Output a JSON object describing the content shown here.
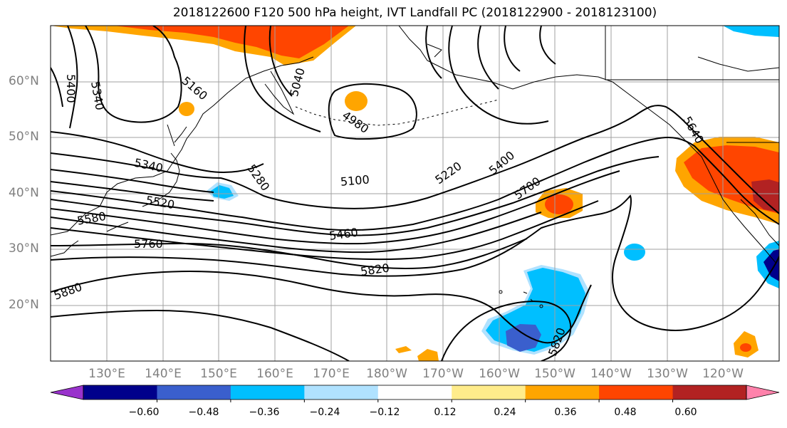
{
  "title": "2018122600 F120 500 hPa height, IVT Landfall PC (2018122900 - 2018123100)",
  "lat_labels": [
    "60°N",
    "50°N",
    "40°N",
    "30°N",
    "20°N"
  ],
  "lon_labels": [
    "130°E",
    "140°E",
    "150°E",
    "160°E",
    "170°E",
    "180°W",
    "170°W",
    "160°W",
    "150°W",
    "140°W",
    "130°W",
    "120°W"
  ],
  "contour_labels": [
    "5400",
    "5340",
    "5160",
    "5040",
    "4980",
    "5340",
    "5280",
    "5100",
    "5220",
    "5400",
    "5700",
    "5640",
    "5520",
    "5580",
    "5460",
    "5760",
    "5820",
    "5880",
    "5820"
  ],
  "colorbar": {
    "ticks": [
      "−0.60",
      "−0.48",
      "−0.36",
      "−0.24",
      "−0.12",
      "0.12",
      "0.24",
      "0.36",
      "0.48",
      "0.60"
    ],
    "colors": [
      "#9932cc",
      "#00008b",
      "#3a5fcd",
      "#00bfff",
      "#b0e2ff",
      "#ffffff",
      "#ffec8b",
      "#ffa500",
      "#ff4500",
      "#b22222",
      "#ff82ab"
    ]
  },
  "colors": {
    "contour": "#000000",
    "grid": "#a0a0a0",
    "coast": "#000000"
  }
}
